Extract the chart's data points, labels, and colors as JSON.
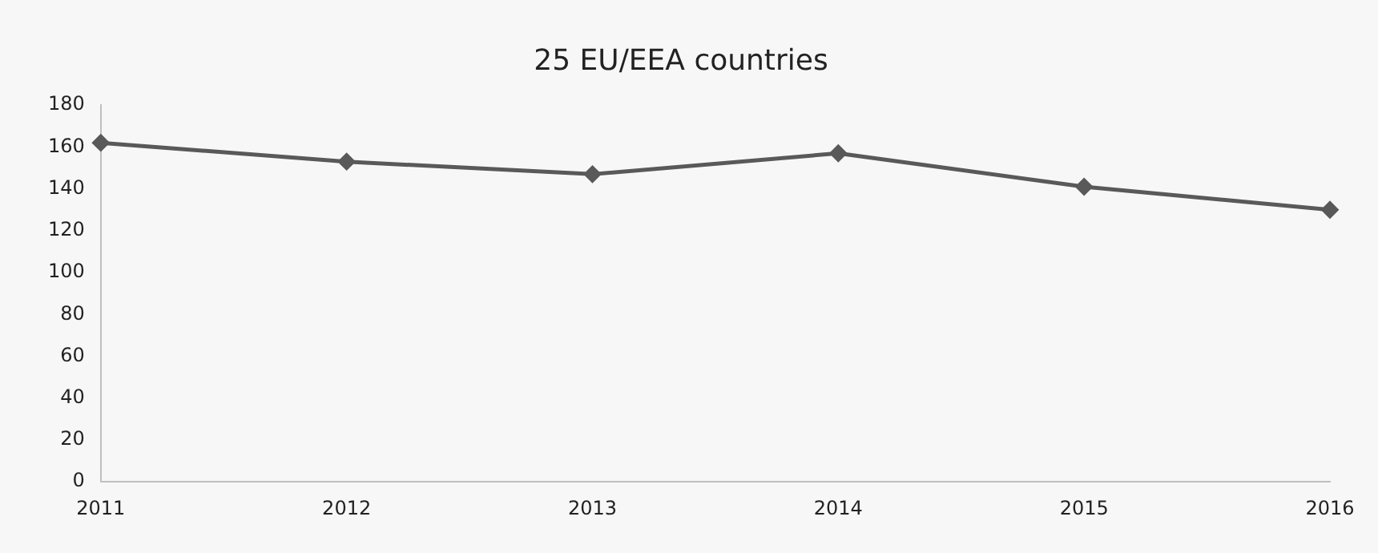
{
  "chart_data": {
    "type": "line",
    "title": "25 EU/EEA countries",
    "categories": [
      "2011",
      "2012",
      "2013",
      "2014",
      "2015",
      "2016"
    ],
    "series": [
      {
        "color": "#595959",
        "values": [
          162,
          153,
          147,
          157,
          141,
          130
        ]
      }
    ],
    "ylim": [
      0,
      180
    ],
    "yticks": [
      0,
      20,
      40,
      60,
      80,
      100,
      120,
      140,
      160,
      180
    ],
    "grid": false,
    "legend": false,
    "marker": "diamond",
    "line_style": "solid"
  }
}
